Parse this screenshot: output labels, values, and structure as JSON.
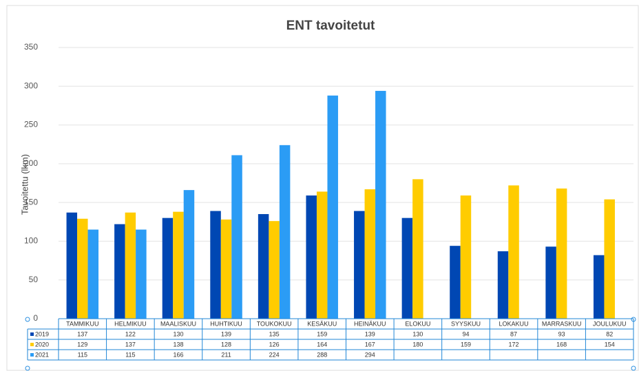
{
  "chart_data": {
    "type": "bar",
    "title": "ENT tavoitetut",
    "y_label": "Tavoitettu (lkm)",
    "categories": [
      "TAMMIKUU",
      "HELMIKUU",
      "MAALISKUU",
      "HUHTIKUU",
      "TOUKOKUU",
      "KESÄKUU",
      "HEINÄKUU",
      "ELOKUU",
      "SYYSKUU",
      "LOKAKUU",
      "MARRASKUU",
      "JOULUKUU"
    ],
    "series": [
      {
        "name": "2019",
        "color": "#0047b3",
        "values": [
          137,
          122,
          130,
          139,
          135,
          159,
          139,
          130,
          94,
          87,
          93,
          82
        ]
      },
      {
        "name": "2020",
        "color": "#ffcc00",
        "values": [
          129,
          137,
          138,
          128,
          126,
          164,
          167,
          180,
          159,
          172,
          168,
          154
        ]
      },
      {
        "name": "2021",
        "color": "#2b9cf5",
        "values": [
          115,
          115,
          166,
          211,
          224,
          288,
          294,
          null,
          null,
          null,
          null,
          null
        ]
      }
    ],
    "ylim": [
      0,
      350
    ],
    "yticks": [
      0,
      50,
      100,
      150,
      200,
      250,
      300,
      350
    ],
    "grid": true
  }
}
